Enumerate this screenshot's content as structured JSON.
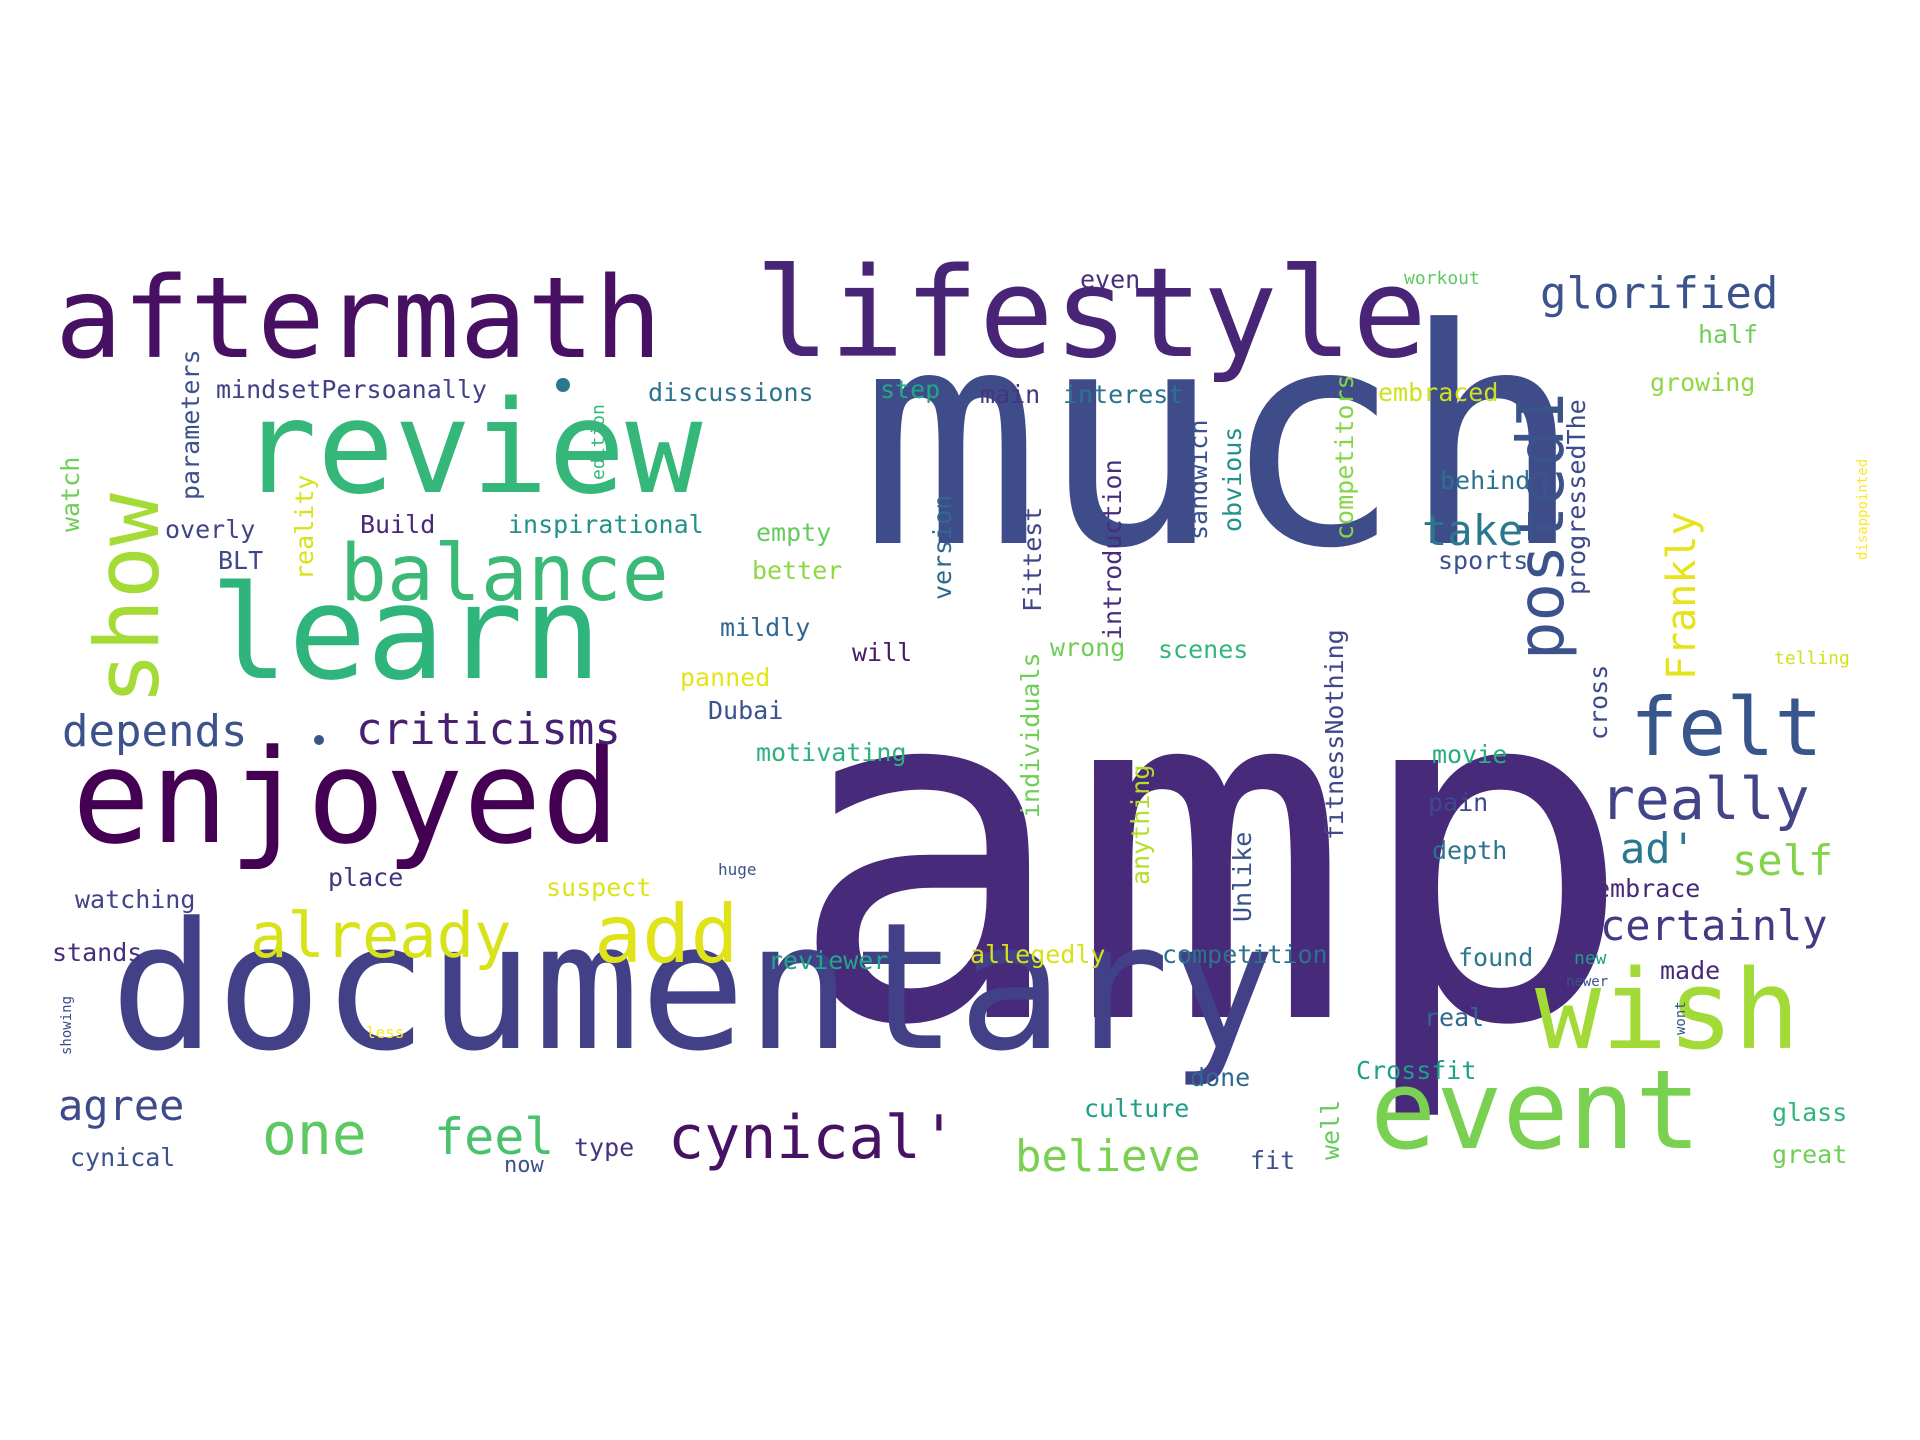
{
  "wordcloud": {
    "words": [
      {
        "text": "amp",
        "color": "#472a7a"
      },
      {
        "text": "much",
        "color": "#3e4c8a"
      },
      {
        "text": "documentary",
        "color": "#424086"
      },
      {
        "text": "lifestyle",
        "color": "#482576"
      },
      {
        "text": "aftermath",
        "color": "#471063"
      },
      {
        "text": "enjoyed",
        "color": "#440154"
      },
      {
        "text": "review",
        "color": "#35b779"
      },
      {
        "text": "learn",
        "color": "#2fb47c"
      },
      {
        "text": "event",
        "color": "#7ad151"
      },
      {
        "text": "wish",
        "color": "#a2da37"
      },
      {
        "text": "show",
        "color": "#a5db36"
      },
      {
        "text": "balance",
        "color": "#3aba76"
      },
      {
        "text": "add",
        "color": "#e0e318"
      },
      {
        "text": "already",
        "color": "#d8e219"
      },
      {
        "text": "cynical'",
        "color": "#471164"
      },
      {
        "text": "felt",
        "color": "#39568c"
      },
      {
        "text": "really",
        "color": "#414487"
      },
      {
        "text": "postedI",
        "color": "#3b528b"
      },
      {
        "text": "glorified",
        "color": "#3b528b"
      },
      {
        "text": "criticisms",
        "color": "#482071"
      },
      {
        "text": "depends",
        "color": "#3b528b"
      },
      {
        "text": "one",
        "color": "#5ec962"
      },
      {
        "text": "feel",
        "color": "#4ac16d"
      },
      {
        "text": "believe",
        "color": "#7ad151"
      },
      {
        "text": "certainly",
        "color": "#443a83"
      },
      {
        "text": "agree",
        "color": "#3e4a89"
      },
      {
        "text": "take",
        "color": "#2a788e"
      },
      {
        "text": "self",
        "color": "#84d44b"
      },
      {
        "text": "ad'",
        "color": "#2a788e"
      },
      {
        "text": "Frankly",
        "color": "#e5e419"
      },
      {
        "text": "mindsetPersoanally",
        "color": "#424086"
      },
      {
        "text": "discussions",
        "color": "#2c728e"
      },
      {
        "text": "step",
        "color": "#22a785"
      },
      {
        "text": "main",
        "color": "#453581"
      },
      {
        "text": "interest",
        "color": "#2c728e"
      },
      {
        "text": "even",
        "color": "#472d7b"
      },
      {
        "text": "workout",
        "color": "#5ec962"
      },
      {
        "text": "half",
        "color": "#6ece58"
      },
      {
        "text": "growing",
        "color": "#90d743"
      },
      {
        "text": "embraced",
        "color": "#cde11d"
      },
      {
        "text": "behind",
        "color": "#2d708e"
      },
      {
        "text": "sports",
        "color": "#3b528b"
      },
      {
        "text": "overly",
        "color": "#414487"
      },
      {
        "text": "Build",
        "color": "#482878"
      },
      {
        "text": "inspirational",
        "color": "#21918c"
      },
      {
        "text": "empty",
        "color": "#65cb5e"
      },
      {
        "text": "better",
        "color": "#8fd744"
      },
      {
        "text": "mildly",
        "color": "#31688e"
      },
      {
        "text": "will",
        "color": "#481a6c"
      },
      {
        "text": "wrong",
        "color": "#6ece58"
      },
      {
        "text": "scenes",
        "color": "#35b779"
      },
      {
        "text": "BLT",
        "color": "#3e4989"
      },
      {
        "text": "panned",
        "color": "#e5e419"
      },
      {
        "text": "Dubai",
        "color": "#3b528b"
      },
      {
        "text": "motivating",
        "color": "#2db27d"
      },
      {
        "text": "movie",
        "color": "#29af7f"
      },
      {
        "text": "pain",
        "color": "#3e4989"
      },
      {
        "text": "depth",
        "color": "#2c728e"
      },
      {
        "text": "embrace",
        "color": "#482878"
      },
      {
        "text": "watching",
        "color": "#414487"
      },
      {
        "text": "place",
        "color": "#46327e"
      },
      {
        "text": "suspect",
        "color": "#dde318"
      },
      {
        "text": "huge",
        "color": "#3b528b"
      },
      {
        "text": "stands",
        "color": "#472d7b"
      },
      {
        "text": "reviewer",
        "color": "#22a785"
      },
      {
        "text": "allegedly",
        "color": "#d8e219"
      },
      {
        "text": "competition",
        "color": "#2c728e"
      },
      {
        "text": "found",
        "color": "#2a788e"
      },
      {
        "text": "new",
        "color": "#1f9e89"
      },
      {
        "text": "newer",
        "color": "#3b528b"
      },
      {
        "text": "made",
        "color": "#482878"
      },
      {
        "text": "real",
        "color": "#31688e"
      },
      {
        "text": "done",
        "color": "#31688e"
      },
      {
        "text": "Crossfit",
        "color": "#1f9e89"
      },
      {
        "text": "culture",
        "color": "#1f9e89"
      },
      {
        "text": "glass",
        "color": "#2fb47c"
      },
      {
        "text": "great",
        "color": "#6ece58"
      },
      {
        "text": "fit",
        "color": "#3b528b"
      },
      {
        "text": "cynical",
        "color": "#3b528b"
      },
      {
        "text": "type",
        "color": "#46327e"
      },
      {
        "text": "now",
        "color": "#3b528b"
      },
      {
        "text": "less",
        "color": "#fde725"
      },
      {
        "text": "telling",
        "color": "#d0e11c"
      },
      {
        "text": "parameters",
        "color": "#3b528b"
      },
      {
        "text": "watch",
        "color": "#6ece58"
      },
      {
        "text": "reality",
        "color": "#d8e219"
      },
      {
        "text": "edition",
        "color": "#35b779"
      },
      {
        "text": "version",
        "color": "#31688e"
      },
      {
        "text": "individuals",
        "color": "#6ece58"
      },
      {
        "text": "Fittest",
        "color": "#404688"
      },
      {
        "text": "introduction",
        "color": "#472d7b"
      },
      {
        "text": "sandwich",
        "color": "#3b528b"
      },
      {
        "text": "obvious",
        "color": "#21918c"
      },
      {
        "text": "competitors",
        "color": "#86d549"
      },
      {
        "text": "fitnessNothing",
        "color": "#404688"
      },
      {
        "text": "anything",
        "color": "#b5de2b"
      },
      {
        "text": "Unlike",
        "color": "#3b528b"
      },
      {
        "text": "cross",
        "color": "#3e4989"
      },
      {
        "text": "progressedThe",
        "color": "#3e4989"
      },
      {
        "text": "disappointed",
        "color": "#fde725"
      },
      {
        "text": "showing",
        "color": "#3e4989"
      },
      {
        "text": "wont",
        "color": "#3b528b"
      },
      {
        "text": "well",
        "color": "#65cb5e"
      }
    ]
  }
}
